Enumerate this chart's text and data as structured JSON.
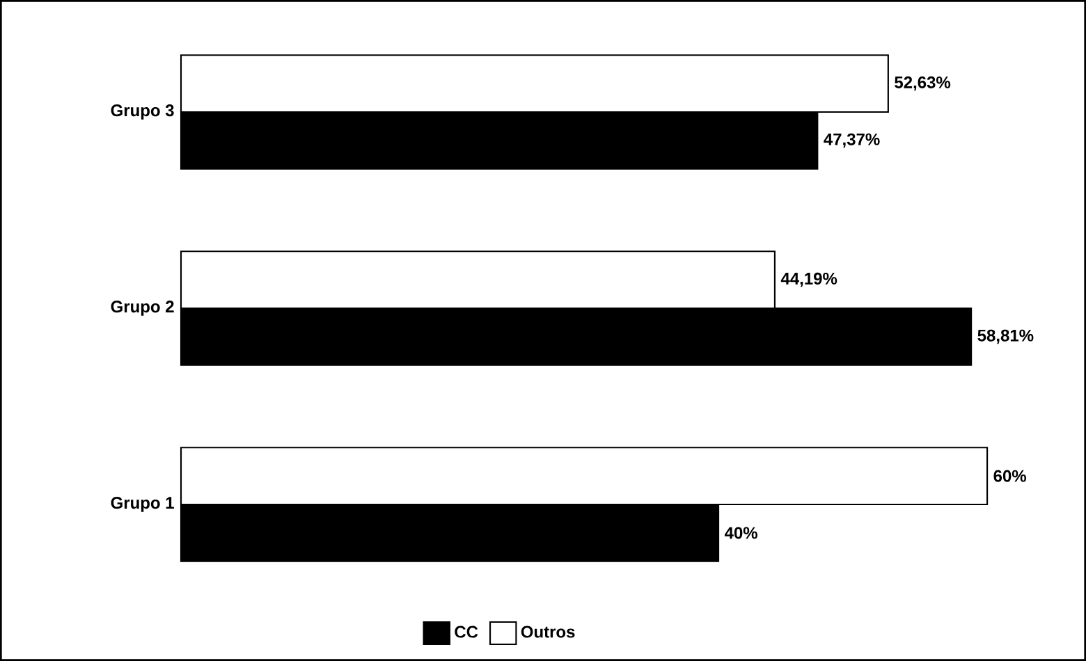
{
  "chart_data": {
    "type": "bar",
    "orientation": "horizontal",
    "categories": [
      "Grupo 3",
      "Grupo 2",
      "Grupo 1"
    ],
    "series": [
      {
        "name": "CC",
        "color": "#000000",
        "values": [
          47.37,
          58.81,
          40
        ],
        "value_labels": [
          "47,37%",
          "58,81%",
          "40%"
        ]
      },
      {
        "name": "Outros",
        "color": "#ffffff",
        "values": [
          52.63,
          44.19,
          60
        ],
        "value_labels": [
          "52,63%",
          "44,19%",
          "60%"
        ]
      }
    ],
    "legend": "bottom"
  }
}
